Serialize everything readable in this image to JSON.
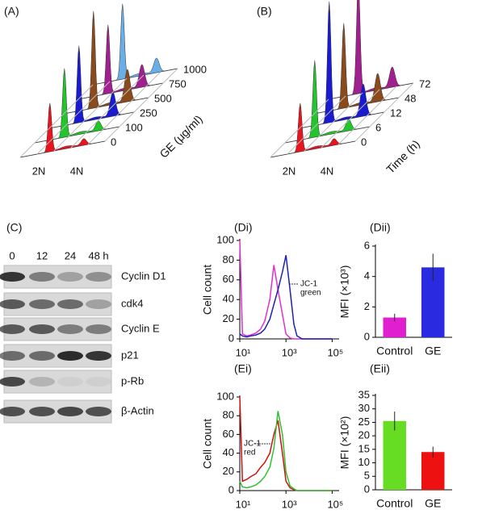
{
  "chart_data": [
    {
      "type": "ridge",
      "title": "(A)",
      "depth_label": "GE (μg/ml)",
      "x_labels": [
        "2N",
        "4N"
      ],
      "series": [
        {
          "name": "0",
          "color": "#e8141e"
        },
        {
          "name": "100",
          "color": "#22c52a"
        },
        {
          "name": "250",
          "color": "#1a1ad0"
        },
        {
          "name": "500",
          "color": "#8b4a1c"
        },
        {
          "name": "750",
          "color": "#a0208f"
        },
        {
          "name": "1000",
          "color": "#6aaee8"
        }
      ]
    },
    {
      "type": "ridge",
      "title": "(B)",
      "depth_label": "Time (h)",
      "x_labels": [
        "2N",
        "4N"
      ],
      "series": [
        {
          "name": "0",
          "color": "#e8141e"
        },
        {
          "name": "6",
          "color": "#22c52a"
        },
        {
          "name": "12",
          "color": "#1a1ad0"
        },
        {
          "name": "48",
          "color": "#8b4a1c"
        },
        {
          "name": "72",
          "color": "#a0208f"
        }
      ]
    },
    {
      "type": "blot",
      "title": "(C)",
      "lanes": [
        "0",
        "12",
        "24",
        "48 h"
      ],
      "proteins": [
        "Cyclin D1",
        "cdk4",
        "Cyclin E",
        "p21",
        "p-Rb",
        "β-Actin"
      ]
    },
    {
      "type": "line",
      "title": "(Di)",
      "ylabel": "Cell count",
      "log_x": true,
      "annotation": [
        "JC-1",
        "green"
      ],
      "x": [
        10,
        13,
        20,
        30,
        50,
        80,
        120,
        200,
        300,
        450,
        700,
        1000,
        1500,
        2200,
        3000,
        5000,
        10000,
        100000
      ],
      "series": [
        {
          "color": "#e030d0",
          "values": [
            100,
            5,
            3,
            4,
            6,
            10,
            18,
            40,
            75,
            50,
            25,
            5,
            1,
            0,
            0,
            0,
            0,
            0
          ]
        },
        {
          "color": "#2020b0",
          "values": [
            5,
            3,
            2,
            3,
            4,
            6,
            10,
            20,
            35,
            50,
            68,
            85,
            50,
            15,
            3,
            0,
            0,
            0
          ]
        }
      ],
      "xlim": [
        10,
        200000
      ],
      "xticks": [
        {
          "value": 10,
          "label": "10¹"
        },
        {
          "value": 1000,
          "label": "10³"
        },
        {
          "value": 100000,
          "label": "10⁵"
        }
      ],
      "ylim": [
        0,
        100
      ],
      "yticks": [
        0,
        20,
        40,
        60,
        80,
        100
      ]
    },
    {
      "type": "bar",
      "title": "(Dii)",
      "ylabel": "MFI (×10³)",
      "categories": [
        "Control",
        "GE"
      ],
      "values": [
        1.3,
        4.6
      ],
      "errors": [
        0.25,
        0.9
      ],
      "colors": [
        "#e020d0",
        "#2a2ae0"
      ],
      "ylim": [
        0,
        6
      ],
      "yticks": [
        0,
        2,
        4,
        6
      ]
    },
    {
      "type": "line",
      "title": "(Ei)",
      "ylabel": "Cell count",
      "log_x": true,
      "annotation": [
        "JC-1",
        "red"
      ],
      "x": [
        10,
        13,
        20,
        30,
        50,
        80,
        120,
        200,
        300,
        450,
        700,
        1000,
        1500,
        2200,
        3000,
        5000,
        10000,
        100000
      ],
      "series": [
        {
          "color": "#d01010",
          "values": [
            100,
            10,
            12,
            15,
            18,
            25,
            30,
            40,
            60,
            75,
            40,
            10,
            3,
            1,
            0,
            0,
            0,
            0
          ]
        },
        {
          "color": "#30c030",
          "values": [
            10,
            4,
            3,
            4,
            6,
            10,
            15,
            25,
            45,
            85,
            60,
            20,
            5,
            2,
            0,
            0,
            0,
            0
          ]
        }
      ],
      "xlim": [
        10,
        200000
      ],
      "xticks": [
        {
          "value": 10,
          "label": "10¹"
        },
        {
          "value": 1000,
          "label": "10³"
        },
        {
          "value": 100000,
          "label": "10⁵"
        }
      ],
      "ylim": [
        0,
        100
      ],
      "yticks": [
        0,
        20,
        40,
        60,
        80,
        100
      ]
    },
    {
      "type": "bar",
      "title": "(Eii)",
      "ylabel": "MFI (×10²)",
      "categories": [
        "Control",
        "GE"
      ],
      "values": [
        25.5,
        14
      ],
      "errors": [
        3.5,
        2
      ],
      "colors": [
        "#66dd22",
        "#ee1111"
      ],
      "ylim": [
        0,
        35
      ],
      "yticks": [
        0,
        5,
        10,
        15,
        20,
        25,
        30,
        35
      ]
    }
  ]
}
